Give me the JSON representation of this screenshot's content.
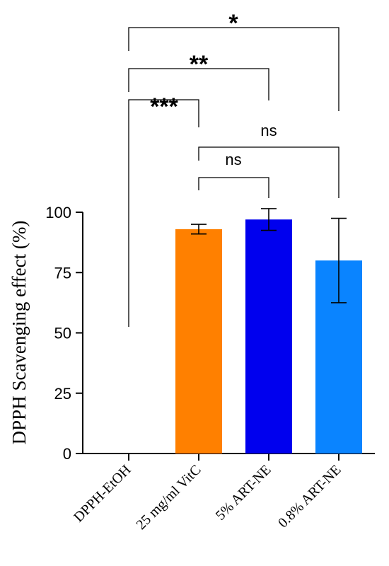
{
  "chart_data": {
    "type": "bar",
    "categories": [
      "DPPH-EtOH",
      "25 mg/ml VitC",
      "5% ART-NE",
      "0.8% ART-NE"
    ],
    "values": [
      0,
      93,
      97,
      80
    ],
    "errors": [
      0,
      2,
      4.5,
      17.5
    ],
    "colors": [
      "#ffffff",
      "#ff8000",
      "#0000ee",
      "#0a84ff"
    ],
    "ylabel": "DPPH Scavenging effect (%)",
    "xlabel": "",
    "ylim": [
      0,
      100
    ],
    "yticks": [
      0,
      25,
      50,
      75,
      100
    ],
    "comparisons": [
      {
        "from": 0,
        "to": 3,
        "label": "*"
      },
      {
        "from": 0,
        "to": 2,
        "label": "**"
      },
      {
        "from": 0,
        "to": 1,
        "label": "***"
      },
      {
        "from": 1,
        "to": 3,
        "label": "ns"
      },
      {
        "from": 1,
        "to": 2,
        "label": "ns"
      }
    ]
  }
}
